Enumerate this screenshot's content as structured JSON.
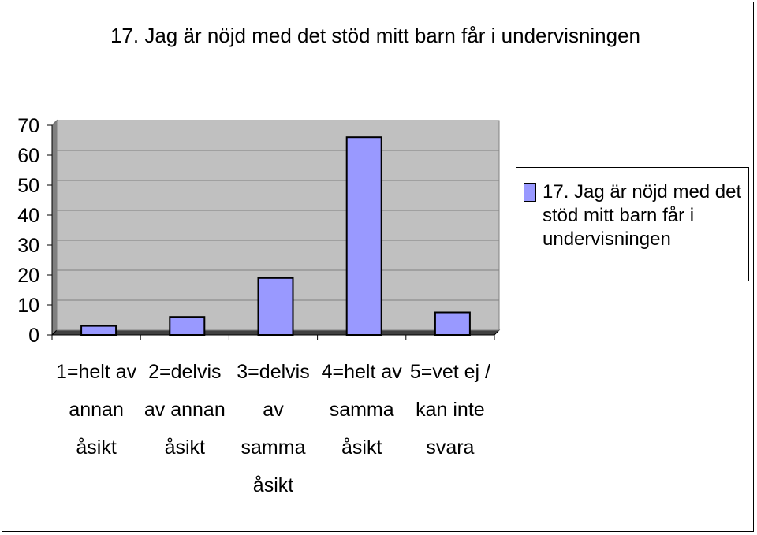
{
  "chart_data": {
    "type": "bar",
    "title": "17. Jag är nöjd med det stöd mitt barn får i undervisningen",
    "categories": [
      [
        "1=helt av",
        "annan",
        "åsikt"
      ],
      [
        "2=delvis",
        "av annan",
        "åsikt"
      ],
      [
        "3=delvis",
        "av",
        "samma",
        "åsikt"
      ],
      [
        "4=helt av",
        "samma",
        "åsikt"
      ],
      [
        "5=vet ej /",
        "kan inte",
        "svara"
      ]
    ],
    "series": [
      {
        "name": "17. Jag är nöjd med det stöd mitt barn får i undervisningen",
        "values": [
          3,
          6,
          19,
          66,
          7.5
        ]
      }
    ],
    "ylim": [
      0,
      70
    ],
    "yticks": [
      0,
      10,
      20,
      30,
      40,
      50,
      60,
      70
    ],
    "grid": true,
    "legend": "right",
    "colors": {
      "bar": "#9999ff",
      "plot_bg": "#c0c0c0",
      "grid": "#808080"
    }
  }
}
